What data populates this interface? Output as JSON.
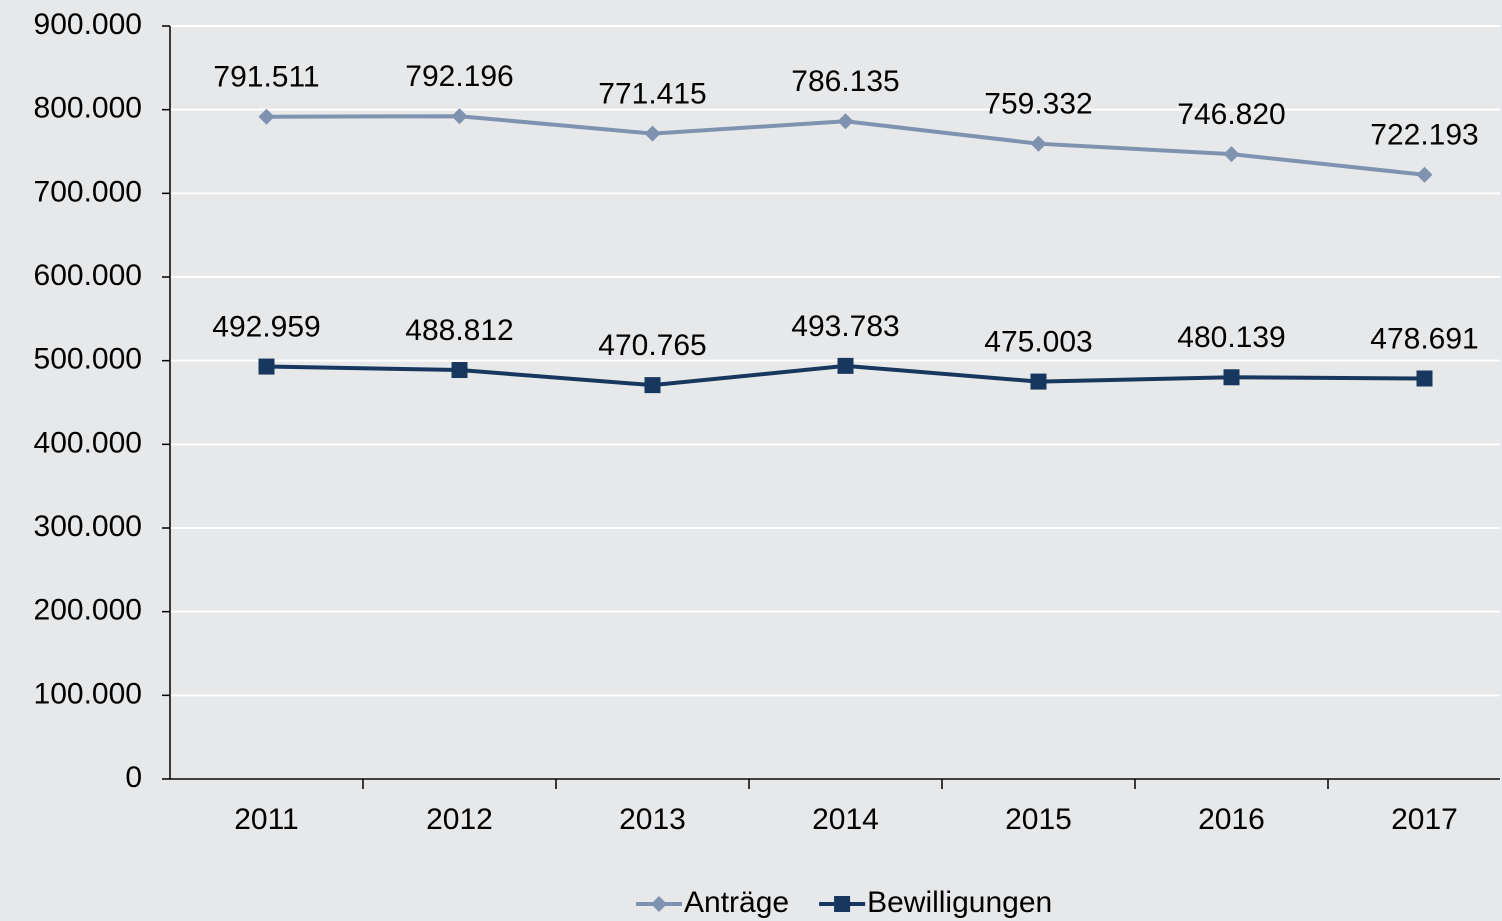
{
  "chart_data": {
    "type": "line",
    "categories": [
      "2011",
      "2012",
      "2013",
      "2014",
      "2015",
      "2016",
      "2017"
    ],
    "series": [
      {
        "name": "Anträge",
        "color": "#7f93b1",
        "marker": "diamond",
        "values": [
          791511,
          792196,
          771415,
          786135,
          759332,
          746820,
          722193
        ],
        "value_labels": [
          "791.511",
          "792.196",
          "771.415",
          "786.135",
          "759.332",
          "746.820",
          "722.193"
        ]
      },
      {
        "name": "Bewilligungen",
        "color": "#17375e",
        "marker": "square",
        "values": [
          492959,
          488812,
          470765,
          493783,
          475003,
          480139,
          478691
        ],
        "value_labels": [
          "492.959",
          "488.812",
          "470.765",
          "493.783",
          "475.003",
          "480.139",
          "478.691"
        ]
      }
    ],
    "ylim": [
      0,
      900000
    ],
    "yticks": [
      0,
      {
        "value": 100000,
        "label": "100.000"
      },
      {
        "value": 200000,
        "label": "200.000"
      },
      {
        "value": 300000,
        "label": "300.000"
      },
      {
        "value": 400000,
        "label": "400.000"
      },
      {
        "value": 500000,
        "label": "500.000"
      },
      {
        "value": 600000,
        "label": "600.000"
      },
      {
        "value": 700000,
        "label": "700.000"
      },
      {
        "value": 800000,
        "label": "800.000"
      },
      {
        "value": 900000,
        "label": "900.000"
      }
    ],
    "grid": true,
    "legend": "bottom"
  }
}
